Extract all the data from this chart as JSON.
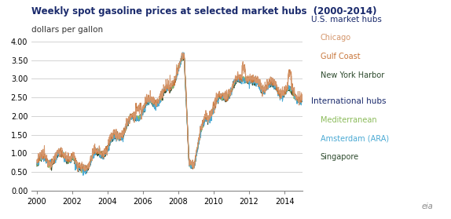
{
  "title": "Weekly spot gasoline prices at selected market hubs  (2000-2014)",
  "subtitle": "dollars per gallon",
  "ylim": [
    0.0,
    4.0
  ],
  "yticks": [
    0.0,
    0.5,
    1.0,
    1.5,
    2.0,
    2.5,
    3.0,
    3.5,
    4.0
  ],
  "xticks": [
    2000,
    2002,
    2004,
    2006,
    2008,
    2010,
    2012,
    2014
  ],
  "xlim": [
    1999.7,
    2015.0
  ],
  "colors": {
    "chicago": "#D4956A",
    "gulf_coast": "#C8763A",
    "new_york_harbor": "#2D4A2D",
    "mediterranean": "#8BBB5A",
    "amsterdam": "#4BAAD4",
    "singapore": "#2D4A2D"
  },
  "legend_us_header": "U.S. market hubs",
  "legend_chicago": "Chicago",
  "legend_gulf": "Gulf Coast",
  "legend_ny": "New York Harbor",
  "legend_intl_header": "International hubs",
  "legend_med": "Mediterranean",
  "legend_ams": "Amsterdam (ARA)",
  "legend_sing": "Singapore",
  "background_color": "#ffffff",
  "grid_color": "#cccccc",
  "title_color": "#1a2a6c",
  "subtitle_color": "#333333",
  "header_color": "#1a2a6c"
}
